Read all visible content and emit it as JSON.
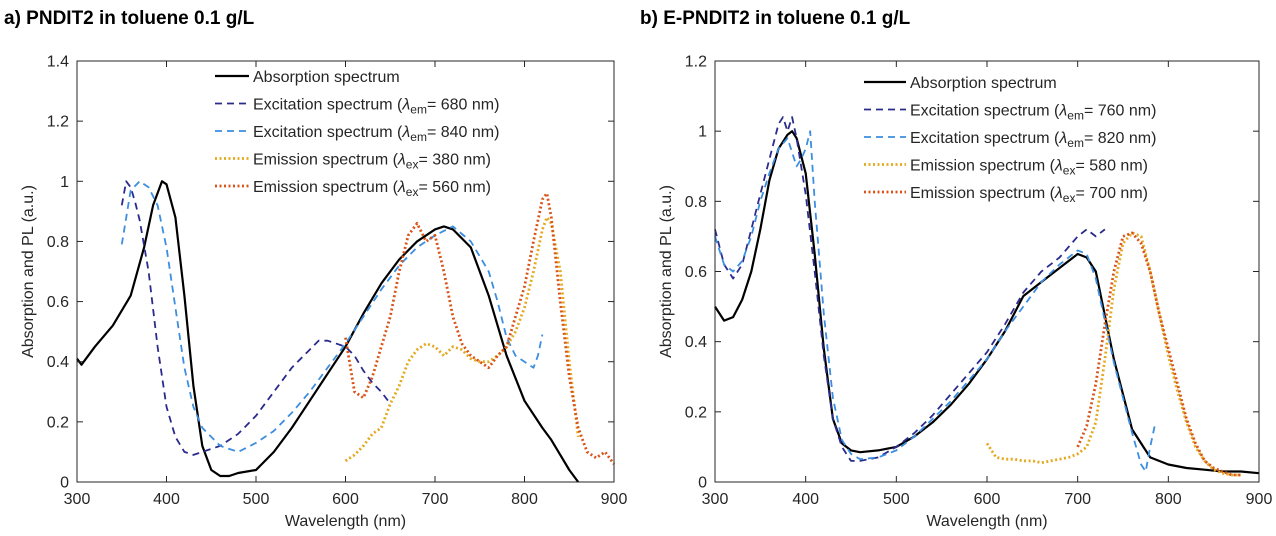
{
  "panels": [
    {
      "title": "a) PNDIT2 in toluene 0.1 g/L"
    },
    {
      "title": "b) E-PNDIT2 in toluene 0.1 g/L"
    }
  ],
  "chart_data": [
    {
      "type": "line",
      "title": "a) PNDIT2 in toluene 0.1 g/L",
      "xlabel": "Wavelength (nm)",
      "ylabel": "Absorption and PL (a.u.)",
      "xlim": [
        300,
        900
      ],
      "ylim": [
        0,
        1.4
      ],
      "xticks": [
        300,
        400,
        500,
        600,
        700,
        800,
        900
      ],
      "yticks": [
        0,
        0.2,
        0.4,
        0.6,
        0.8,
        1,
        1.2,
        1.4
      ],
      "grid": false,
      "legend_position": "top-center",
      "series": [
        {
          "name": "Absorption spectrum",
          "color": "#000000",
          "style": "solid",
          "x": [
            300,
            305,
            310,
            320,
            340,
            360,
            375,
            385,
            395,
            400,
            410,
            420,
            430,
            440,
            450,
            460,
            470,
            480,
            500,
            520,
            540,
            560,
            580,
            600,
            620,
            640,
            660,
            680,
            700,
            710,
            720,
            740,
            760,
            770,
            780,
            800,
            820,
            830,
            840,
            850,
            860
          ],
          "y": [
            0.41,
            0.39,
            0.41,
            0.45,
            0.52,
            0.62,
            0.78,
            0.92,
            1.0,
            0.99,
            0.88,
            0.62,
            0.32,
            0.12,
            0.04,
            0.02,
            0.02,
            0.03,
            0.04,
            0.1,
            0.18,
            0.27,
            0.36,
            0.45,
            0.56,
            0.66,
            0.74,
            0.8,
            0.84,
            0.85,
            0.84,
            0.78,
            0.62,
            0.52,
            0.42,
            0.27,
            0.18,
            0.14,
            0.09,
            0.04,
            0.0
          ]
        },
        {
          "name": "Excitation spectrum (λem= 680 nm)",
          "label_main": "Excitation spectrum (",
          "label_symbol": "λ",
          "label_sub": "em",
          "label_tail": "= 680 nm)",
          "color": "#2b2b8c",
          "style": "dashed",
          "x": [
            350,
            355,
            360,
            365,
            370,
            380,
            390,
            400,
            410,
            420,
            430,
            440,
            450,
            460,
            480,
            500,
            520,
            540,
            560,
            570,
            580,
            590,
            600,
            610,
            620,
            630,
            640,
            650
          ],
          "y": [
            0.92,
            1.0,
            0.98,
            0.93,
            0.87,
            0.7,
            0.45,
            0.25,
            0.15,
            0.1,
            0.09,
            0.1,
            0.11,
            0.12,
            0.16,
            0.22,
            0.3,
            0.38,
            0.44,
            0.47,
            0.47,
            0.46,
            0.45,
            0.42,
            0.37,
            0.33,
            0.3,
            0.26
          ]
        },
        {
          "name": "Excitation spectrum (λem= 840 nm)",
          "label_main": "Excitation spectrum (",
          "label_symbol": "λ",
          "label_sub": "em",
          "label_tail": "= 840 nm)",
          "color": "#3b8ee0",
          "style": "dashed",
          "x": [
            350,
            360,
            370,
            380,
            390,
            400,
            410,
            420,
            430,
            440,
            460,
            480,
            500,
            520,
            540,
            560,
            580,
            600,
            620,
            640,
            660,
            680,
            700,
            720,
            740,
            750,
            760,
            770,
            780,
            790,
            800,
            810,
            815,
            820
          ],
          "y": [
            0.79,
            0.97,
            1.0,
            0.98,
            0.92,
            0.78,
            0.58,
            0.38,
            0.25,
            0.18,
            0.12,
            0.1,
            0.13,
            0.17,
            0.23,
            0.3,
            0.38,
            0.46,
            0.55,
            0.64,
            0.72,
            0.78,
            0.82,
            0.85,
            0.8,
            0.75,
            0.7,
            0.6,
            0.48,
            0.42,
            0.4,
            0.38,
            0.42,
            0.49
          ]
        },
        {
          "name": "Emission spectrum (λex= 380 nm)",
          "label_main": "Emission spectrum (",
          "label_symbol": "λ",
          "label_sub": "ex",
          "label_tail": "= 380 nm)",
          "color": "#e3a91f",
          "style": "dotted",
          "x": [
            600,
            610,
            620,
            630,
            640,
            650,
            660,
            670,
            680,
            690,
            700,
            710,
            720,
            730,
            740,
            750,
            760,
            770,
            780,
            790,
            800,
            810,
            820,
            825,
            830,
            840,
            850,
            860
          ],
          "y": [
            0.07,
            0.09,
            0.12,
            0.16,
            0.18,
            0.26,
            0.32,
            0.4,
            0.44,
            0.46,
            0.45,
            0.42,
            0.45,
            0.44,
            0.41,
            0.4,
            0.4,
            0.42,
            0.45,
            0.5,
            0.58,
            0.7,
            0.84,
            0.88,
            0.86,
            0.7,
            0.4,
            0.15
          ]
        },
        {
          "name": "Emission spectrum (λex= 560 nm)",
          "label_main": "Emission spectrum (",
          "label_symbol": "λ",
          "label_sub": "ex",
          "label_tail": "= 560 nm)",
          "color": "#d95319",
          "style": "dotted",
          "x": [
            600,
            610,
            620,
            630,
            640,
            650,
            660,
            670,
            680,
            690,
            700,
            710,
            720,
            730,
            740,
            750,
            760,
            770,
            780,
            790,
            800,
            810,
            820,
            825,
            830,
            840,
            850,
            860,
            870,
            880,
            890,
            900
          ],
          "y": [
            0.48,
            0.3,
            0.28,
            0.35,
            0.45,
            0.55,
            0.7,
            0.82,
            0.86,
            0.8,
            0.82,
            0.7,
            0.55,
            0.46,
            0.42,
            0.4,
            0.38,
            0.42,
            0.45,
            0.55,
            0.65,
            0.8,
            0.94,
            0.96,
            0.88,
            0.6,
            0.35,
            0.18,
            0.1,
            0.08,
            0.1,
            0.06
          ]
        }
      ]
    },
    {
      "type": "line",
      "title": "b) E-PNDIT2 in toluene 0.1 g/L",
      "xlabel": "Wavelength (nm)",
      "ylabel": "Absorption and PL (a.u.)",
      "xlim": [
        300,
        900
      ],
      "ylim": [
        0,
        1.2
      ],
      "xticks": [
        300,
        400,
        500,
        600,
        700,
        800,
        900
      ],
      "yticks": [
        0,
        0.2,
        0.4,
        0.6,
        0.8,
        1,
        1.2
      ],
      "grid": false,
      "legend_position": "top-right",
      "series": [
        {
          "name": "Absorption spectrum",
          "color": "#000000",
          "style": "solid",
          "x": [
            300,
            310,
            320,
            330,
            340,
            350,
            360,
            370,
            380,
            385,
            390,
            400,
            410,
            420,
            430,
            440,
            450,
            460,
            480,
            500,
            520,
            540,
            560,
            580,
            600,
            620,
            640,
            660,
            680,
            700,
            710,
            720,
            740,
            760,
            780,
            800,
            820,
            840,
            860,
            880,
            900
          ],
          "y": [
            0.5,
            0.46,
            0.47,
            0.52,
            0.6,
            0.72,
            0.86,
            0.95,
            0.99,
            1.0,
            0.98,
            0.88,
            0.65,
            0.38,
            0.18,
            0.11,
            0.09,
            0.085,
            0.09,
            0.1,
            0.13,
            0.17,
            0.22,
            0.28,
            0.35,
            0.43,
            0.53,
            0.57,
            0.61,
            0.65,
            0.64,
            0.6,
            0.35,
            0.15,
            0.07,
            0.05,
            0.04,
            0.035,
            0.03,
            0.03,
            0.025
          ]
        },
        {
          "name": "Excitation spectrum (λem= 760 nm)",
          "label_main": "Excitation spectrum (",
          "label_symbol": "λ",
          "label_sub": "em",
          "label_tail": "= 760 nm)",
          "color": "#2b2b8c",
          "style": "dashed",
          "x": [
            300,
            310,
            320,
            330,
            340,
            350,
            360,
            370,
            375,
            380,
            385,
            390,
            400,
            410,
            420,
            430,
            440,
            450,
            460,
            480,
            500,
            520,
            540,
            560,
            580,
            600,
            620,
            640,
            660,
            680,
            700,
            710,
            720,
            730
          ],
          "y": [
            0.72,
            0.62,
            0.58,
            0.62,
            0.72,
            0.82,
            0.92,
            1.02,
            1.04,
            1.0,
            1.04,
            0.98,
            0.82,
            0.6,
            0.36,
            0.18,
            0.1,
            0.06,
            0.06,
            0.07,
            0.1,
            0.14,
            0.19,
            0.25,
            0.31,
            0.37,
            0.45,
            0.54,
            0.6,
            0.64,
            0.7,
            0.72,
            0.7,
            0.72
          ]
        },
        {
          "name": "Excitation spectrum (λem= 820 nm)",
          "label_main": "Excitation spectrum (",
          "label_symbol": "λ",
          "label_sub": "em",
          "label_tail": "= 820 nm)",
          "color": "#3b8ee0",
          "style": "dashed",
          "x": [
            300,
            310,
            320,
            330,
            340,
            350,
            360,
            370,
            380,
            390,
            395,
            400,
            405,
            410,
            420,
            430,
            440,
            450,
            460,
            480,
            500,
            520,
            540,
            560,
            580,
            600,
            620,
            640,
            660,
            680,
            700,
            710,
            720,
            740,
            760,
            770,
            775,
            780,
            785
          ],
          "y": [
            0.7,
            0.62,
            0.6,
            0.63,
            0.7,
            0.8,
            0.88,
            0.95,
            0.98,
            0.9,
            0.92,
            0.95,
            1.0,
            0.8,
            0.48,
            0.24,
            0.12,
            0.08,
            0.065,
            0.07,
            0.09,
            0.13,
            0.18,
            0.23,
            0.29,
            0.35,
            0.43,
            0.5,
            0.57,
            0.62,
            0.66,
            0.65,
            0.58,
            0.34,
            0.14,
            0.05,
            0.03,
            0.1,
            0.16
          ]
        },
        {
          "name": "Emission spectrum (λex= 580 nm)",
          "label_main": "Emission spectrum  (",
          "label_symbol": "λ",
          "label_sub": "ex",
          "label_tail": "= 580 nm)",
          "color": "#e3a91f",
          "style": "dotted",
          "x": [
            600,
            610,
            620,
            630,
            640,
            650,
            660,
            670,
            680,
            690,
            700,
            710,
            720,
            730,
            740,
            750,
            760,
            770,
            780,
            790,
            800,
            810,
            820,
            830,
            840,
            850,
            860,
            870,
            880
          ],
          "y": [
            0.11,
            0.07,
            0.065,
            0.065,
            0.06,
            0.06,
            0.055,
            0.06,
            0.065,
            0.07,
            0.08,
            0.1,
            0.17,
            0.35,
            0.55,
            0.68,
            0.71,
            0.7,
            0.6,
            0.48,
            0.36,
            0.26,
            0.17,
            0.1,
            0.06,
            0.035,
            0.025,
            0.02,
            0.02
          ]
        },
        {
          "name": "Emission spectrum (λex= 700 nm)",
          "label_main": "Emission spectrum  (",
          "label_symbol": "λ",
          "label_sub": "ex",
          "label_tail": "= 700 nm)",
          "color": "#d95319",
          "style": "dotted",
          "x": [
            700,
            710,
            720,
            730,
            740,
            750,
            760,
            770,
            780,
            790,
            800,
            810,
            820,
            830,
            840,
            850,
            860,
            870,
            880
          ],
          "y": [
            0.1,
            0.16,
            0.28,
            0.45,
            0.6,
            0.7,
            0.71,
            0.68,
            0.6,
            0.48,
            0.38,
            0.28,
            0.18,
            0.11,
            0.06,
            0.04,
            0.03,
            0.02,
            0.02
          ]
        }
      ]
    }
  ]
}
